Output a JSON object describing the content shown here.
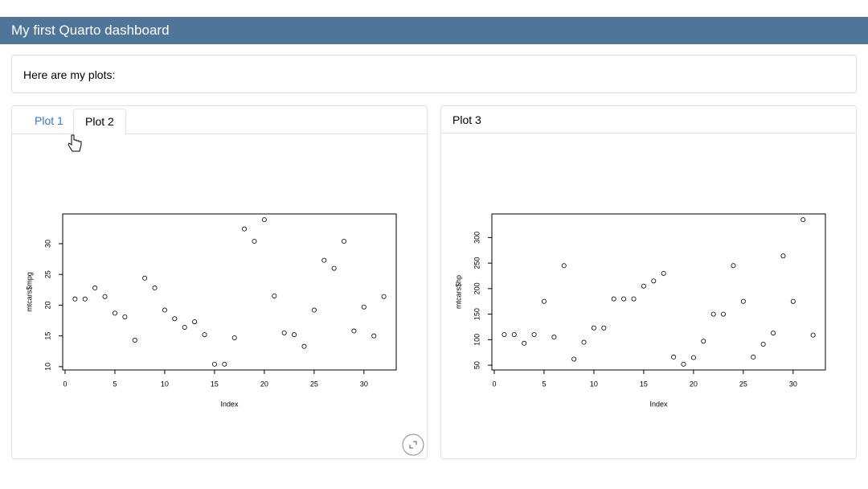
{
  "header": {
    "title": "My first Quarto dashboard"
  },
  "intro": {
    "text": "Here are my plots:"
  },
  "tabs": [
    "Plot 1",
    "Plot 2"
  ],
  "panel_title": "Plot 3",
  "chart_data": [
    {
      "type": "scatter",
      "xlabel": "Index",
      "ylabel": "mtcars$mpg",
      "x": [
        1,
        2,
        3,
        4,
        5,
        6,
        7,
        8,
        9,
        10,
        11,
        12,
        13,
        14,
        15,
        16,
        17,
        18,
        19,
        20,
        21,
        22,
        23,
        24,
        25,
        26,
        27,
        28,
        29,
        30,
        31,
        32
      ],
      "values": [
        21,
        21,
        22.8,
        21.4,
        18.7,
        18.1,
        14.3,
        24.4,
        22.8,
        19.2,
        17.8,
        16.4,
        17.3,
        15.2,
        10.4,
        10.4,
        14.7,
        32.4,
        30.4,
        33.9,
        21.5,
        15.5,
        15.2,
        13.3,
        19.2,
        27.3,
        26,
        30.4,
        15.8,
        19.7,
        15,
        21.4
      ],
      "color": "#000000",
      "xlim": [
        -0.24,
        33.24
      ],
      "ylim": [
        9.46,
        34.84
      ],
      "xticks": [
        0,
        5,
        10,
        15,
        20,
        25,
        30
      ],
      "yticks": [
        10,
        15,
        20,
        25,
        30
      ]
    },
    {
      "type": "scatter",
      "xlabel": "Index",
      "ylabel": "mtcars$hp",
      "x": [
        1,
        2,
        3,
        4,
        5,
        6,
        7,
        8,
        9,
        10,
        11,
        12,
        13,
        14,
        15,
        16,
        17,
        18,
        19,
        20,
        21,
        22,
        23,
        24,
        25,
        26,
        27,
        28,
        29,
        30,
        31,
        32
      ],
      "values": [
        110,
        110,
        93,
        110,
        175,
        105,
        245,
        62,
        95,
        123,
        123,
        180,
        180,
        180,
        205,
        215,
        230,
        66,
        52,
        65,
        97,
        150,
        150,
        245,
        175,
        66,
        91,
        113,
        264,
        175,
        335,
        109
      ],
      "color": "#000000",
      "xlim": [
        -0.24,
        33.24
      ],
      "ylim": [
        40.68,
        346.32
      ],
      "xticks": [
        0,
        5,
        10,
        15,
        20,
        25,
        30
      ],
      "yticks": [
        50,
        100,
        150,
        200,
        250,
        300
      ]
    }
  ]
}
